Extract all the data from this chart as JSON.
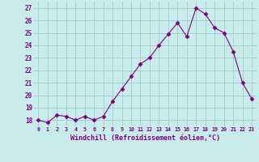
{
  "x": [
    0,
    1,
    2,
    3,
    4,
    5,
    6,
    7,
    8,
    9,
    10,
    11,
    12,
    13,
    14,
    15,
    16,
    17,
    18,
    19,
    20,
    21,
    22,
    23
  ],
  "y": [
    18.0,
    17.8,
    18.4,
    18.3,
    18.0,
    18.3,
    18.0,
    18.3,
    19.5,
    20.5,
    21.5,
    22.5,
    23.0,
    24.0,
    24.9,
    25.8,
    24.7,
    27.0,
    26.5,
    25.4,
    25.0,
    23.5,
    21.0,
    19.7
  ],
  "line_color": "#800080",
  "marker": "D",
  "marker_size": 2.5,
  "bg_color": "#c8ecec",
  "grid_color": "#a0cccc",
  "xlabel": "Windchill (Refroidissement éolien,°C)",
  "xlabel_color": "#800080",
  "ylabel_ticks": [
    18,
    19,
    20,
    21,
    22,
    23,
    24,
    25,
    26,
    27
  ],
  "xlim": [
    -0.5,
    23.5
  ],
  "ylim": [
    17.5,
    27.5
  ],
  "xtick_labels": [
    "0",
    "1",
    "2",
    "3",
    "4",
    "5",
    "6",
    "7",
    "8",
    "9",
    "10",
    "11",
    "12",
    "13",
    "14",
    "15",
    "16",
    "17",
    "18",
    "19",
    "20",
    "21",
    "22",
    "23"
  ]
}
